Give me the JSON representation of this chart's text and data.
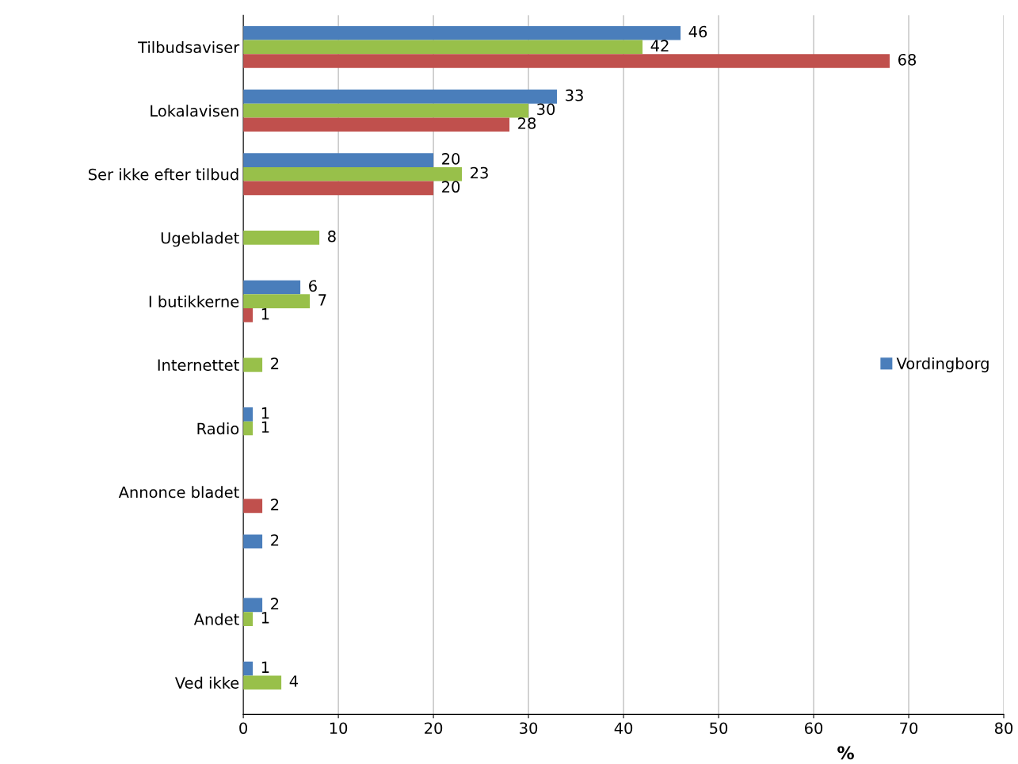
{
  "chart_data": {
    "type": "bar",
    "orientation": "horizontal",
    "categories": [
      "Tilbudsaviser",
      "Lokalavisen",
      "Ser ikke efter tilbud",
      "Ugebladet",
      "I butikkerne",
      "Internettet",
      "Radio",
      "Annonce bladet",
      null,
      "Andet",
      "Ved ikke"
    ],
    "series": [
      {
        "name": "Vordingborg",
        "color": "#4a7ebb",
        "values": [
          46,
          33,
          20,
          null,
          6,
          null,
          1,
          null,
          2,
          2,
          1
        ]
      },
      {
        "color": "#98c04a",
        "values": [
          42,
          30,
          23,
          8,
          7,
          2,
          1,
          null,
          null,
          1,
          4
        ]
      },
      {
        "color": "#c0504d",
        "values": [
          68,
          28,
          20,
          null,
          1,
          null,
          null,
          2,
          null,
          null,
          null
        ]
      }
    ],
    "xlim": [
      0,
      80
    ],
    "xticks": [
      0,
      10,
      20,
      30,
      40,
      50,
      60,
      70,
      80
    ],
    "xlabel": "%",
    "grid": "x",
    "legend": "right",
    "data_labels": true
  }
}
